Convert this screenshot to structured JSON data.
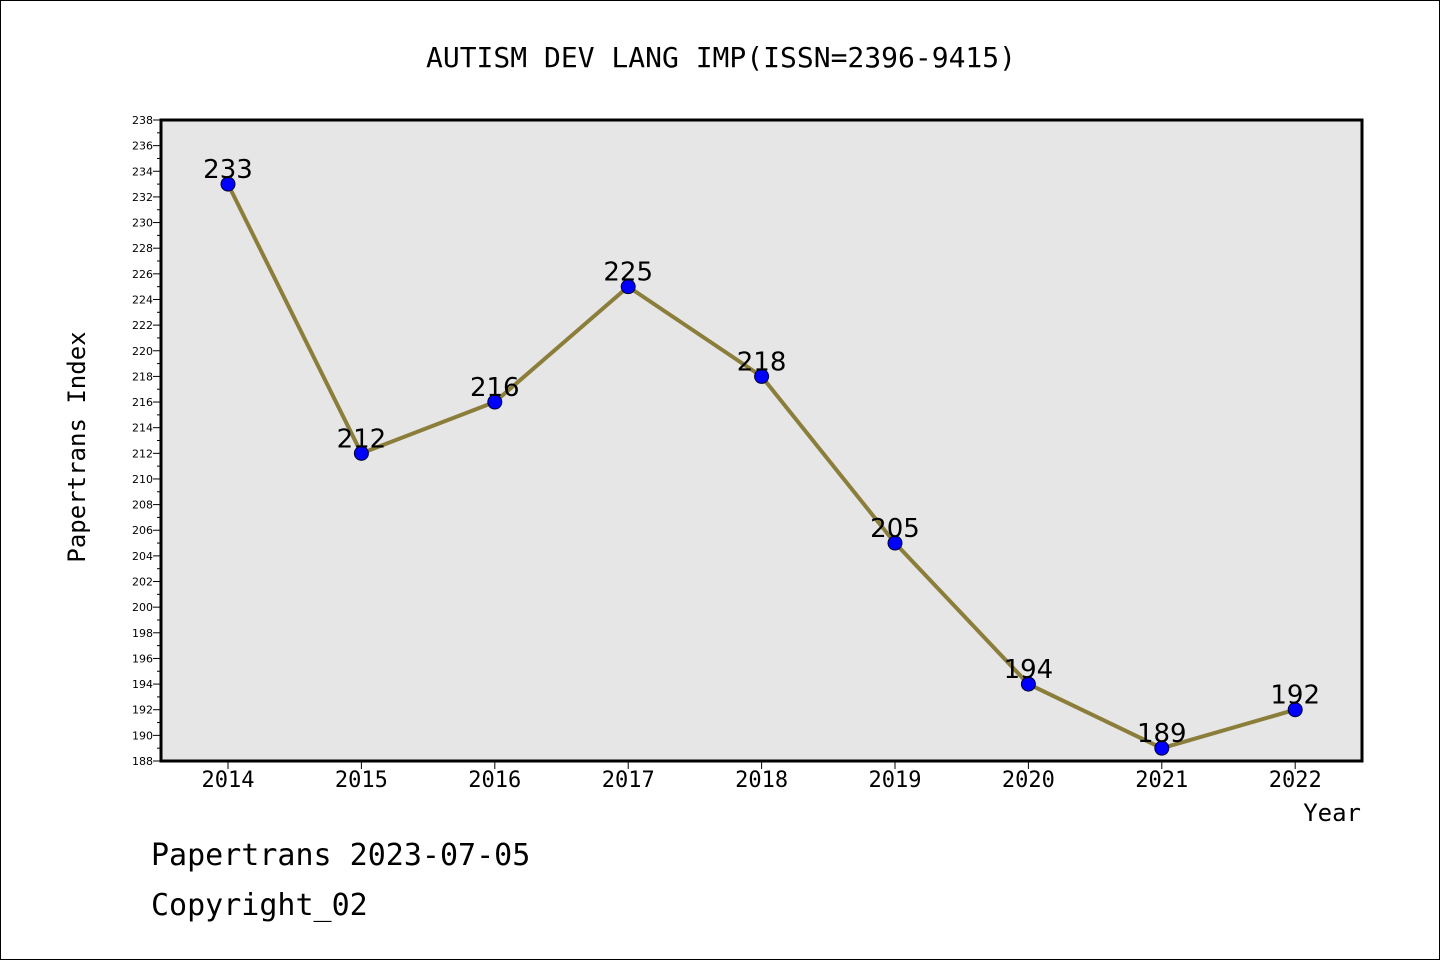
{
  "chart_data": {
    "type": "line",
    "title": "AUTISM DEV LANG IMP(ISSN=2396-9415)",
    "xlabel": "Year",
    "ylabel": "Papertrans Index",
    "categories": [
      "2014",
      "2015",
      "2016",
      "2017",
      "2018",
      "2019",
      "2020",
      "2021",
      "2022"
    ],
    "series": [
      {
        "values": [
          233,
          212,
          216,
          225,
          218,
          205,
          194,
          189,
          192
        ]
      }
    ],
    "ylim": [
      188,
      238
    ],
    "ytick_step": 2,
    "grid": false,
    "line_color": "#8b7d3a",
    "marker_color": "#0000ff",
    "plot_background": "#e6e6e6"
  },
  "footer": {
    "line1": "Papertrans 2023-07-05",
    "line2": "Copyright_02"
  }
}
